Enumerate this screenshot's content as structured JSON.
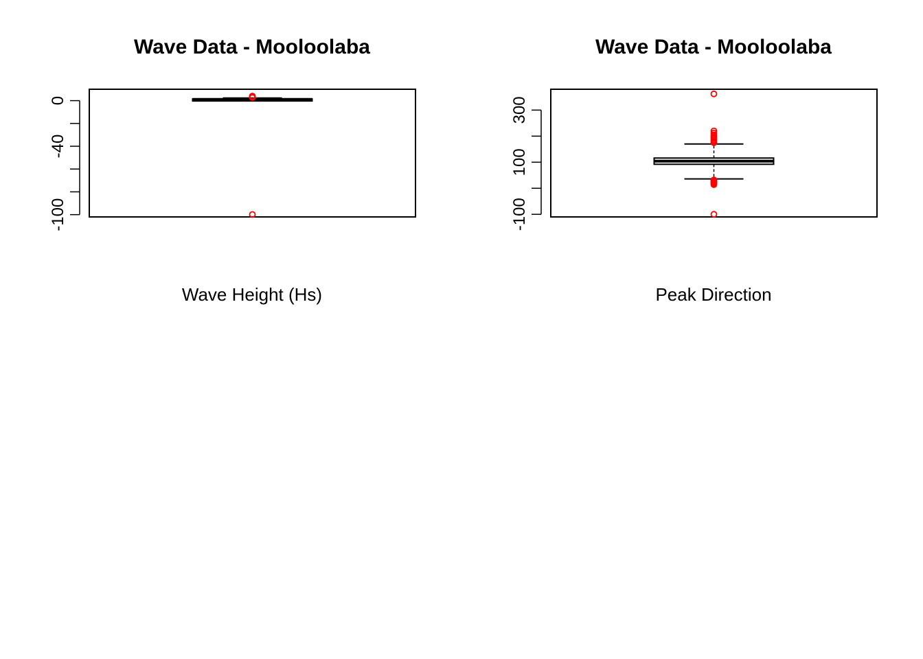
{
  "chart_data": [
    {
      "type": "boxplot",
      "title": "Wave Data - Mooloolaba",
      "xlabel": "Wave Height (Hs)",
      "ylabel": "",
      "ylim": [
        -102,
        10
      ],
      "yticks": [
        0,
        -20,
        -40,
        -60,
        -80,
        -100
      ],
      "ytick_labels": [
        "0",
        "",
        "-40",
        "",
        "",
        "-100"
      ],
      "box": {
        "whisker_low": 0.3,
        "q1": 0.8,
        "median": 1.1,
        "q3": 1.5,
        "whisker_high": 2.3
      },
      "outliers": [
        -99.9,
        2.7,
        3.0,
        3.3,
        3.6,
        4.0
      ],
      "outlier_color": "#ff0000",
      "box_color": "#000000",
      "grid": false
    },
    {
      "type": "boxplot",
      "title": "Wave Data - Mooloolaba",
      "xlabel": "Peak Direction",
      "ylabel": "",
      "ylim": [
        -110,
        380
      ],
      "yticks": [
        300,
        200,
        100,
        0,
        -100
      ],
      "ytick_labels": [
        "300",
        "",
        "100",
        "",
        "-100"
      ],
      "box": {
        "whisker_low": 36,
        "q1": 92,
        "median": 104,
        "q3": 116,
        "whisker_high": 170
      },
      "outliers": [
        -99.9,
        14,
        17,
        20,
        23,
        26,
        29,
        32,
        175,
        180,
        185,
        190,
        195,
        200,
        205,
        212,
        220,
        362
      ],
      "outlier_color": "#ff0000",
      "box_color": "#000000",
      "grid": false
    }
  ]
}
